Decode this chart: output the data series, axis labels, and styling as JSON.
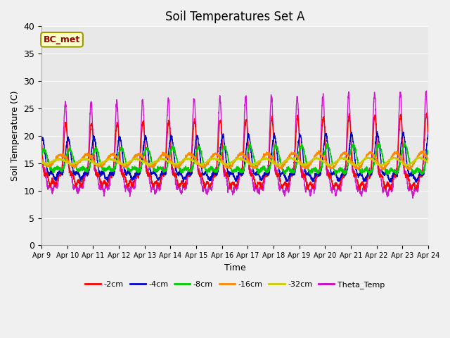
{
  "title": "Soil Temperatures Set A",
  "xlabel": "Time",
  "ylabel": "Soil Temperature (C)",
  "ylim": [
    0,
    40
  ],
  "x_tick_labels": [
    "Apr 9",
    "Apr 10",
    "Apr 11",
    "Apr 12",
    "Apr 13",
    "Apr 14",
    "Apr 15",
    "Apr 16",
    "Apr 17",
    "Apr 18",
    "Apr 19",
    "Apr 20",
    "Apr 21",
    "Apr 22",
    "Apr 23",
    "Apr 24"
  ],
  "legend_labels": [
    "-2cm",
    "-4cm",
    "-8cm",
    "-16cm",
    "-32cm",
    "Theta_Temp"
  ],
  "legend_colors": [
    "#ff0000",
    "#0000cc",
    "#00cc00",
    "#ff8800",
    "#cccc00",
    "#cc00cc"
  ],
  "annotation_text": "BC_met",
  "annotation_color": "#990000",
  "annotation_bg": "#ffffcc",
  "annotation_border": "#999900",
  "fig_bg": "#f0f0f0",
  "plot_bg": "#e8e8e8",
  "grid_color": "#ffffff",
  "title_fontsize": 12
}
